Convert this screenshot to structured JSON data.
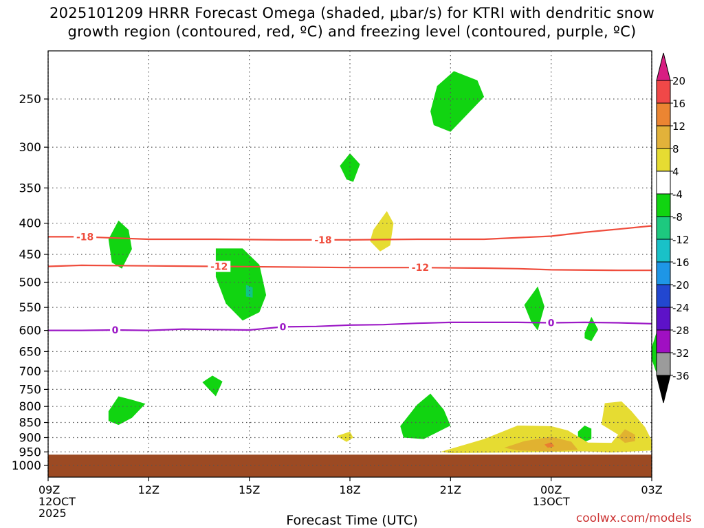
{
  "title_lines": [
    "2025101209 HRRR Forecast Omega (shaded, μbar/s) for KTRI with dendritic snow",
    "growth region (contoured, red, ºC) and freezing level (contoured, purple, ºC)"
  ],
  "x_axis_title": "Forecast Time (UTC)",
  "credit": "coolwx.com/models",
  "colors": {
    "ground": "#9c4a23",
    "dgz": "#ef4c3c",
    "freezing": "#9c19c6",
    "grid": "#555555"
  },
  "chart_data": {
    "type": "contour",
    "x_ticks": [
      {
        "hour": 0,
        "lines": [
          "09Z",
          "12OCT",
          "2025"
        ]
      },
      {
        "hour": 3,
        "lines": [
          "12Z"
        ]
      },
      {
        "hour": 6,
        "lines": [
          "15Z"
        ]
      },
      {
        "hour": 9,
        "lines": [
          "18Z"
        ]
      },
      {
        "hour": 12,
        "lines": [
          "21Z"
        ]
      },
      {
        "hour": 15,
        "lines": [
          "00Z",
          "13OCT"
        ]
      },
      {
        "hour": 18,
        "lines": [
          "03Z"
        ]
      }
    ],
    "xlim_hours": [
      0,
      18
    ],
    "y_ticks": [
      250,
      300,
      350,
      400,
      450,
      500,
      550,
      600,
      650,
      700,
      750,
      800,
      850,
      900,
      950,
      1000
    ],
    "ylim_mb": [
      200,
      1025
    ],
    "y_units": "mb",
    "ground_level_mb": 960,
    "contours": [
      {
        "name": "-18",
        "color_key": "dgz",
        "points": [
          [
            0,
            421
          ],
          [
            1,
            421
          ],
          [
            3,
            425
          ],
          [
            5,
            425
          ],
          [
            7,
            426
          ],
          [
            9,
            426
          ],
          [
            11,
            425
          ],
          [
            13,
            425
          ],
          [
            15,
            420
          ],
          [
            16,
            414
          ],
          [
            17,
            409
          ],
          [
            18,
            404
          ]
        ],
        "labels": [
          {
            "x": 1.1,
            "text": "-18"
          },
          {
            "x": 8.2,
            "text": "-18"
          }
        ]
      },
      {
        "name": "-12",
        "color_key": "dgz",
        "points": [
          [
            0,
            471
          ],
          [
            1,
            469
          ],
          [
            3,
            470
          ],
          [
            5,
            471
          ],
          [
            7,
            472
          ],
          [
            9,
            473
          ],
          [
            11,
            473
          ],
          [
            13,
            474
          ],
          [
            14,
            475
          ],
          [
            15,
            477
          ],
          [
            17,
            478
          ],
          [
            18,
            478
          ]
        ],
        "labels": [
          {
            "x": 5.1,
            "text": "-12"
          },
          {
            "x": 11.1,
            "text": "-12"
          }
        ]
      },
      {
        "name": "0",
        "color_key": "freezing",
        "points": [
          [
            0,
            600
          ],
          [
            1,
            600
          ],
          [
            2,
            599
          ],
          [
            3,
            600
          ],
          [
            4,
            597
          ],
          [
            5,
            598
          ],
          [
            6,
            599
          ],
          [
            7,
            592
          ],
          [
            8,
            591
          ],
          [
            9,
            588
          ],
          [
            10,
            587
          ],
          [
            11,
            584
          ],
          [
            12,
            582
          ],
          [
            13,
            582
          ],
          [
            14,
            582
          ],
          [
            15,
            583
          ],
          [
            16,
            582
          ],
          [
            17,
            583
          ],
          [
            18,
            585
          ]
        ],
        "labels": [
          {
            "x": 2.0,
            "text": "0"
          },
          {
            "x": 7.0,
            "text": "0"
          },
          {
            "x": 15.0,
            "text": "0"
          }
        ]
      }
    ],
    "omega_regions": [
      {
        "level": -4,
        "color": "#11d411",
        "points": [
          [
            11.4,
            262
          ],
          [
            11.6,
            238
          ],
          [
            12.1,
            225
          ],
          [
            12.8,
            233
          ],
          [
            13.0,
            248
          ],
          [
            12.5,
            265
          ],
          [
            12.0,
            283
          ],
          [
            11.5,
            276
          ]
        ]
      },
      {
        "level": -4,
        "color": "#11d411",
        "points": [
          [
            8.7,
            322
          ],
          [
            9.0,
            307
          ],
          [
            9.3,
            320
          ],
          [
            9.1,
            342
          ],
          [
            8.9,
            339
          ]
        ]
      },
      {
        "level": -4,
        "color": "#11d411",
        "points": [
          [
            1.8,
            425
          ],
          [
            2.1,
            396
          ],
          [
            2.4,
            410
          ],
          [
            2.5,
            441
          ],
          [
            2.2,
            475
          ],
          [
            1.9,
            464
          ]
        ]
      },
      {
        "level": -4,
        "color": "#11d411",
        "points": [
          [
            5.0,
            440
          ],
          [
            5.8,
            440
          ],
          [
            6.3,
            468
          ],
          [
            6.5,
            525
          ],
          [
            6.3,
            560
          ],
          [
            5.8,
            578
          ],
          [
            5.3,
            542
          ],
          [
            5.0,
            490
          ]
        ]
      },
      {
        "level": -8,
        "color": "#11c28a",
        "points": [
          [
            5.9,
            505
          ],
          [
            6.1,
            510
          ],
          [
            6.1,
            530
          ],
          [
            5.9,
            528
          ]
        ]
      },
      {
        "level": -4,
        "color": "#11d411",
        "points": [
          [
            14.2,
            545
          ],
          [
            14.6,
            508
          ],
          [
            14.8,
            548
          ],
          [
            14.6,
            600
          ],
          [
            14.4,
            580
          ]
        ]
      },
      {
        "level": -4,
        "color": "#11d411",
        "points": [
          [
            16.0,
            606
          ],
          [
            16.2,
            570
          ],
          [
            16.4,
            598
          ],
          [
            16.2,
            625
          ],
          [
            16.0,
            618
          ]
        ]
      },
      {
        "level": -4,
        "color": "#11d411",
        "points": [
          [
            18.0,
            640
          ],
          [
            18.2,
            590
          ],
          [
            18.2,
            720
          ],
          [
            18.0,
            670
          ]
        ]
      },
      {
        "level": -4,
        "color": "#11d411",
        "points": [
          [
            4.6,
            730
          ],
          [
            4.9,
            712
          ],
          [
            5.2,
            728
          ],
          [
            5.0,
            770
          ],
          [
            4.8,
            750
          ]
        ]
      },
      {
        "level": -4,
        "color": "#11d411",
        "points": [
          [
            1.8,
            815
          ],
          [
            2.1,
            770
          ],
          [
            2.5,
            780
          ],
          [
            2.9,
            792
          ],
          [
            2.5,
            835
          ],
          [
            2.1,
            858
          ],
          [
            1.8,
            845
          ]
        ]
      },
      {
        "level": -4,
        "color": "#11d411",
        "points": [
          [
            10.5,
            862
          ],
          [
            11.0,
            795
          ],
          [
            11.4,
            762
          ],
          [
            11.8,
            810
          ],
          [
            12.0,
            860
          ],
          [
            11.2,
            905
          ],
          [
            10.6,
            900
          ]
        ]
      },
      {
        "level": -4,
        "color": "#11d411",
        "points": [
          [
            15.8,
            880
          ],
          [
            16.0,
            860
          ],
          [
            16.2,
            870
          ],
          [
            16.2,
            905
          ],
          [
            16.0,
            915
          ],
          [
            15.8,
            900
          ]
        ]
      },
      {
        "level": 4,
        "color": "#e6dc32",
        "points": [
          [
            9.7,
            410
          ],
          [
            10.1,
            382
          ],
          [
            10.3,
            400
          ],
          [
            10.2,
            435
          ],
          [
            9.9,
            445
          ],
          [
            9.6,
            428
          ]
        ]
      },
      {
        "level": 4,
        "color": "#e6dc32",
        "points": [
          [
            8.6,
            895
          ],
          [
            9.0,
            880
          ],
          [
            9.1,
            900
          ],
          [
            8.9,
            915
          ]
        ]
      },
      {
        "level": 4,
        "color": "#e6dc32",
        "points": [
          [
            11.7,
            950
          ],
          [
            13.0,
            905
          ],
          [
            14.0,
            860
          ],
          [
            15.0,
            862
          ],
          [
            15.5,
            876
          ],
          [
            16.1,
            917
          ],
          [
            16.8,
            918
          ],
          [
            17.0,
            890
          ],
          [
            16.5,
            856
          ],
          [
            16.6,
            790
          ],
          [
            17.1,
            785
          ],
          [
            17.4,
            815
          ],
          [
            17.8,
            865
          ],
          [
            18.0,
            910
          ],
          [
            18.0,
            945
          ],
          [
            16.8,
            952
          ],
          [
            16.0,
            948
          ],
          [
            15.0,
            950
          ],
          [
            14.0,
            952
          ],
          [
            13.0,
            953
          ],
          [
            12.0,
            954
          ]
        ]
      },
      {
        "level": 8,
        "color": "#e1b230",
        "points": [
          [
            13.6,
            935
          ],
          [
            14.2,
            912
          ],
          [
            15.0,
            897
          ],
          [
            15.6,
            914
          ],
          [
            15.8,
            943
          ],
          [
            15.0,
            948
          ],
          [
            14.0,
            945
          ]
        ]
      },
      {
        "level": 8,
        "color": "#e1b230",
        "points": [
          [
            17.0,
            900
          ],
          [
            17.2,
            872
          ],
          [
            17.5,
            890
          ],
          [
            17.5,
            912
          ],
          [
            17.2,
            918
          ]
        ]
      },
      {
        "level": 12,
        "color": "#e97e30",
        "points": [
          [
            14.8,
            924
          ],
          [
            15.0,
            916
          ],
          [
            15.1,
            930
          ],
          [
            14.9,
            935
          ]
        ]
      }
    ],
    "colorbar": {
      "labels": [
        "20",
        "16",
        "12",
        "8",
        "4",
        "-4",
        "-8",
        "-12",
        "-16",
        "-20",
        "-24",
        "-28",
        "-32",
        "-36"
      ],
      "colors": [
        "#d81e82",
        "#f04848",
        "#eb8532",
        "#e2b23a",
        "#e6dc32",
        "#ffffff",
        "#11d411",
        "#1dc97f",
        "#19c1c8",
        "#1e96e6",
        "#2247d0",
        "#5d12c8",
        "#a00fc2",
        "#9b9b9b",
        "#000000"
      ]
    }
  }
}
